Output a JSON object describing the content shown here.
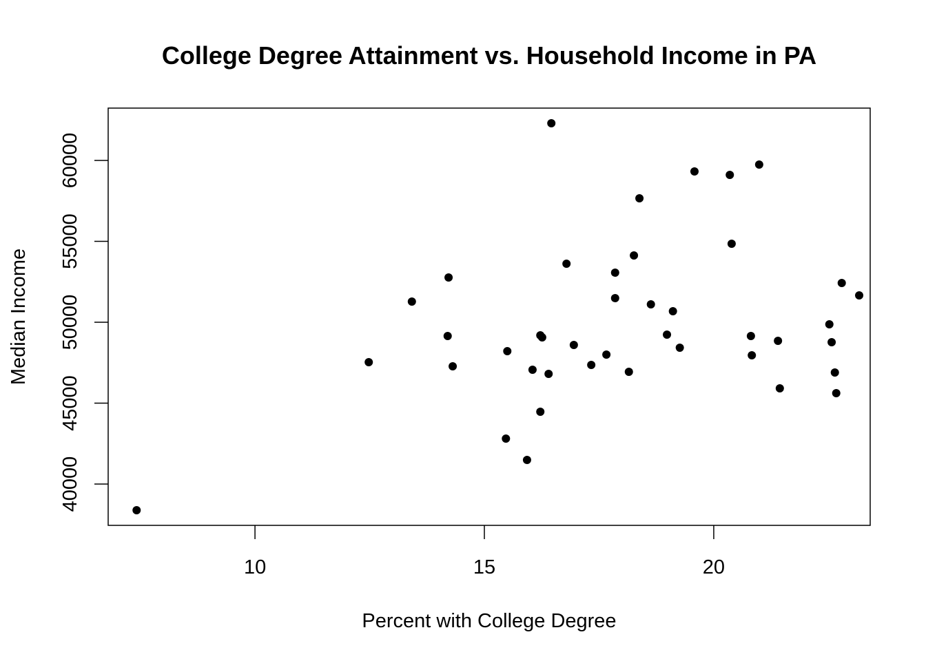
{
  "chart_data": {
    "type": "scatter",
    "title": "College Degree Attainment vs. Household Income in PA",
    "xlabel": "Percent with College Degree",
    "ylabel": "Median Income",
    "xlim": [
      6.8,
      23.41
    ],
    "ylim": [
      37447,
      63234
    ],
    "xticks": [
      10,
      15,
      20
    ],
    "yticks": [
      40000,
      45000,
      50000,
      55000,
      60000
    ],
    "grid": false,
    "legend": "none",
    "point_color": "#000000",
    "points": [
      [
        7.42,
        38383
      ],
      [
        12.48,
        47532
      ],
      [
        13.42,
        51277
      ],
      [
        14.22,
        52766
      ],
      [
        14.2,
        49149
      ],
      [
        14.31,
        47277
      ],
      [
        15.47,
        42809
      ],
      [
        15.5,
        48213
      ],
      [
        15.93,
        41489
      ],
      [
        16.05,
        47064
      ],
      [
        16.22,
        44468
      ],
      [
        16.22,
        49191
      ],
      [
        16.26,
        49064
      ],
      [
        16.4,
        46809
      ],
      [
        16.46,
        62298
      ],
      [
        16.79,
        53617
      ],
      [
        16.95,
        48596
      ],
      [
        17.33,
        47362
      ],
      [
        17.66,
        48000
      ],
      [
        17.85,
        53064
      ],
      [
        17.85,
        51489
      ],
      [
        18.15,
        46936
      ],
      [
        18.26,
        54128
      ],
      [
        18.38,
        57660
      ],
      [
        18.63,
        51106
      ],
      [
        18.98,
        49234
      ],
      [
        19.11,
        50681
      ],
      [
        19.26,
        48426
      ],
      [
        19.58,
        59319
      ],
      [
        20.35,
        59106
      ],
      [
        20.39,
        54851
      ],
      [
        20.81,
        49149
      ],
      [
        20.83,
        47957
      ],
      [
        20.99,
        59745
      ],
      [
        21.4,
        48851
      ],
      [
        21.44,
        45915
      ],
      [
        22.52,
        49872
      ],
      [
        22.57,
        48766
      ],
      [
        22.64,
        46894
      ],
      [
        22.67,
        45617
      ],
      [
        22.79,
        52426
      ],
      [
        23.17,
        51660
      ]
    ]
  }
}
